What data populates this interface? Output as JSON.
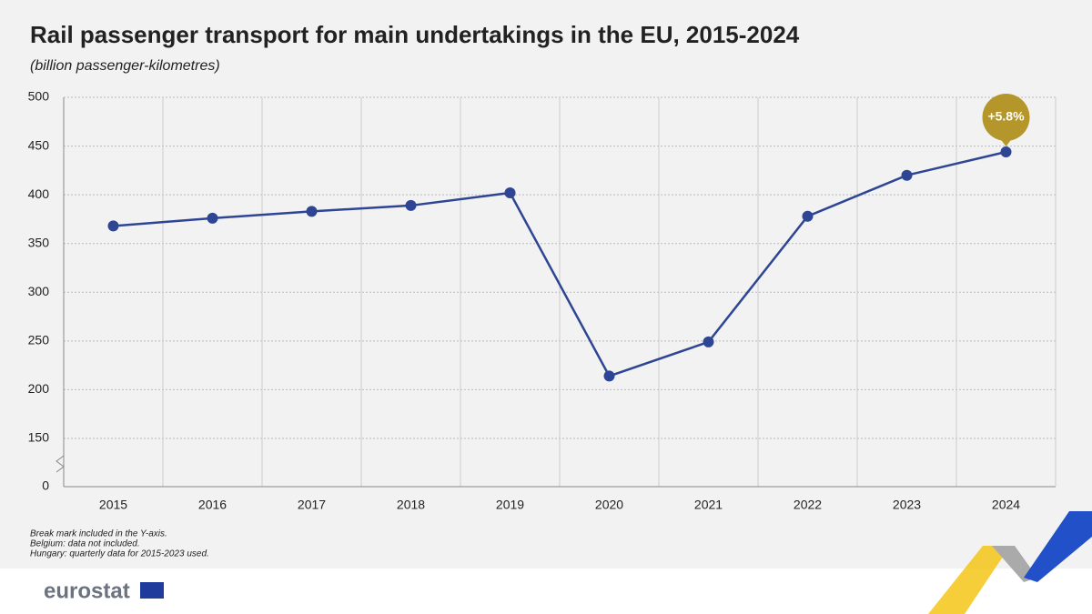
{
  "chart_data": {
    "type": "line",
    "title": "Rail passenger transport for main undertakings in the EU, 2015-2024",
    "subtitle": "(billion passenger-kilometres)",
    "categories": [
      "2015",
      "2016",
      "2017",
      "2018",
      "2019",
      "2020",
      "2021",
      "2022",
      "2023",
      "2024"
    ],
    "series": [
      {
        "color": "#2e4594",
        "values": [
          368,
          376,
          383,
          389,
          402,
          214,
          249,
          378,
          420,
          444
        ]
      }
    ],
    "ylim": [
      0,
      500
    ],
    "yticks": [
      0,
      150,
      200,
      250,
      300,
      350,
      400,
      450,
      500
    ],
    "y_break": [
      0,
      150
    ],
    "grid": true,
    "annotation": {
      "text": "+5.8%",
      "color": "#b5962a"
    },
    "notes": [
      "Break mark included in the Y-axis.",
      "Belgium: data not included.",
      "Hungary: quarterly data for 2015-2023 used."
    ],
    "source": "eurostat"
  }
}
